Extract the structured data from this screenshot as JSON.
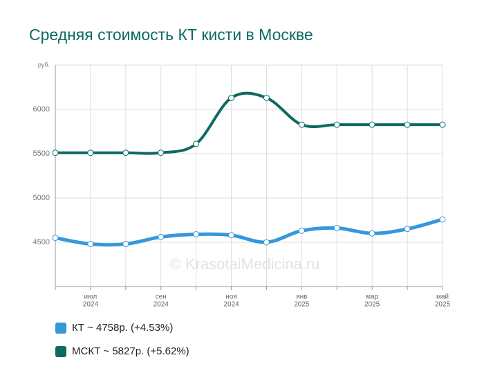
{
  "chart_data": {
    "type": "line",
    "title": "Средняя стоимость КТ кисти в Москве",
    "watermark": "© KrasotaiMedicina.ru",
    "categories": [
      null,
      "июл",
      null,
      "сен",
      null,
      "ноя",
      null,
      "янв",
      null,
      "мар",
      null,
      "май"
    ],
    "category_years": [
      null,
      "2024",
      null,
      "2024",
      null,
      "2024",
      null,
      "2025",
      null,
      "2025",
      null,
      "2025"
    ],
    "series": [
      {
        "name": "КТ ~ 4758р. (+4.53%)",
        "color": "#3498db",
        "values": [
          4550,
          4480,
          4480,
          4560,
          4590,
          4580,
          4500,
          4630,
          4660,
          4600,
          4650,
          4758
        ]
      },
      {
        "name": "МСКТ ~ 5827р. (+5.62%)",
        "color": "#0b6b61",
        "values": [
          5510,
          5510,
          5510,
          5510,
          5610,
          6130,
          6130,
          5827,
          5827,
          5827,
          5827,
          5827
        ]
      }
    ],
    "ylim": [
      4000,
      6500
    ],
    "yticks": [
      4500,
      5000,
      5500,
      6000,
      {
        "value": 6500,
        "label": "руб."
      }
    ],
    "grid": true
  }
}
